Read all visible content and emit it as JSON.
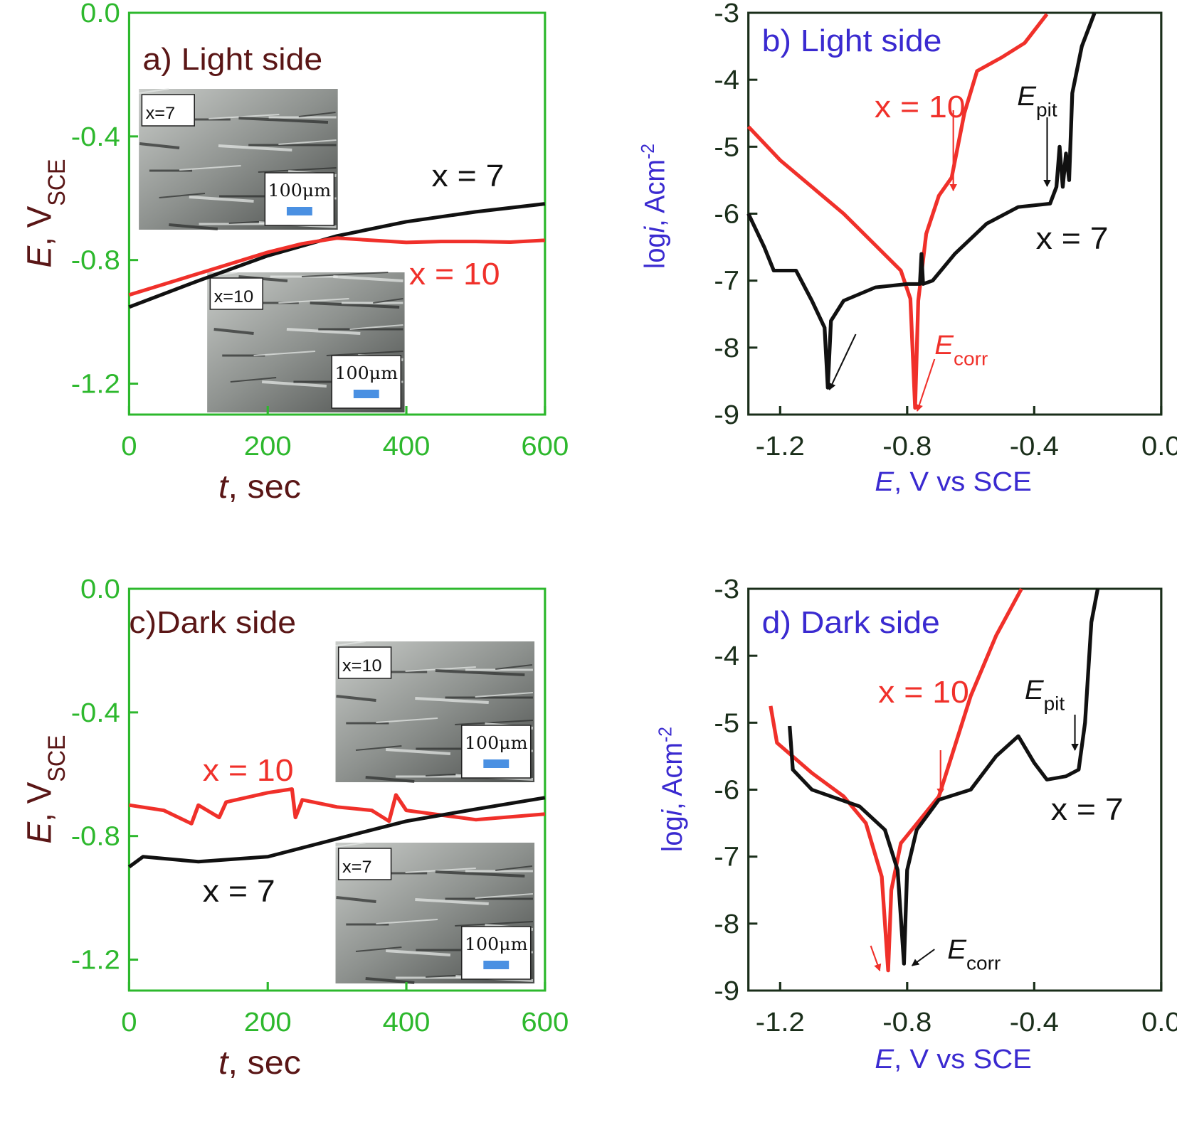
{
  "chart_data": [
    {
      "type": "line",
      "title": "a) Light side",
      "title_color": "#5a1616",
      "axis_color": "#2db82d",
      "label_color": "#5a1616",
      "x_label": [
        "t",
        ", sec"
      ],
      "y_label": [
        "E",
        ", V",
        "SCE"
      ],
      "xlim": [
        0,
        600
      ],
      "ylim": [
        -1.3,
        0
      ],
      "xticks": [
        0,
        200,
        400,
        600
      ],
      "yticks": [
        {
          "value": 0,
          "label": "0.0"
        },
        -0.4,
        -0.8,
        -1.2
      ],
      "series": [
        {
          "name": "x = 7",
          "color": "#111111",
          "x": [
            0,
            100,
            200,
            300,
            400,
            500,
            600
          ],
          "values": [
            -0.952,
            -0.867,
            -0.786,
            -0.722,
            -0.676,
            -0.644,
            -0.618
          ]
        },
        {
          "name": "x = 10",
          "color": "#f0302a",
          "x": [
            0,
            100,
            200,
            250,
            300,
            350,
            400,
            450,
            500,
            550,
            600
          ],
          "values": [
            -0.913,
            -0.844,
            -0.775,
            -0.747,
            -0.729,
            -0.736,
            -0.743,
            -0.74,
            -0.74,
            -0.742,
            -0.736
          ]
        }
      ],
      "insets": [
        {
          "label": "x=7",
          "scale": "100μm"
        },
        {
          "label": "x=10",
          "scale": "100μm"
        }
      ]
    },
    {
      "type": "line",
      "title": "b) Light side",
      "title_color": "#3a2ad0",
      "axis_color": "#1a2e1a",
      "label_color": "#3a2ad0",
      "x_label": [
        "E",
        ",  V vs SCE"
      ],
      "y_label": [
        "log",
        "i",
        ", Acm",
        "-2"
      ],
      "xlim": [
        -1.3,
        0
      ],
      "ylim": [
        -9,
        -3
      ],
      "xticks": [
        -1.2,
        -0.8,
        -0.4,
        {
          "value": 0,
          "label": "0.0"
        }
      ],
      "yticks": [
        -3,
        -4,
        -5,
        -6,
        -7,
        -8,
        -9
      ],
      "series": [
        {
          "name": "x = 10",
          "color": "#f0302a",
          "x": [
            -1.3,
            -1.2,
            -1.0,
            -0.9,
            -0.82,
            -0.79,
            -0.775,
            -0.765,
            -0.74,
            -0.7,
            -0.66,
            -0.62,
            -0.58,
            -0.5,
            -0.43,
            -0.36
          ],
          "values": [
            -4.7,
            -5.2,
            -6.0,
            -6.47,
            -6.85,
            -7.27,
            -8.9,
            -7.3,
            -6.3,
            -5.73,
            -5.46,
            -4.5,
            -3.87,
            -3.66,
            -3.45,
            -3.02
          ]
        },
        {
          "name": "x = 7",
          "color": "#111111",
          "x": [
            -1.3,
            -1.25,
            -1.22,
            -1.15,
            -1.1,
            -1.06,
            -1.05,
            -1.04,
            -1.0,
            -0.95,
            -0.9,
            -0.8,
            -0.76,
            -0.755,
            -0.75,
            -0.72,
            -0.65,
            -0.55,
            -0.45,
            -0.35,
            -0.33,
            -0.32,
            -0.31,
            -0.3,
            -0.29,
            -0.28,
            -0.25,
            -0.21
          ],
          "values": [
            -6.0,
            -6.5,
            -6.85,
            -6.85,
            -7.3,
            -7.7,
            -8.6,
            -7.6,
            -7.3,
            -7.2,
            -7.1,
            -7.05,
            -7.05,
            -6.6,
            -7.05,
            -7.0,
            -6.6,
            -6.15,
            -5.9,
            -5.85,
            -5.6,
            -5.0,
            -5.6,
            -5.1,
            -5.5,
            -4.2,
            -3.5,
            -3.0
          ]
        }
      ],
      "annotations": [
        [
          "E",
          "pit"
        ],
        [
          "E",
          "corr"
        ]
      ]
    },
    {
      "type": "line",
      "title": "c)Dark side",
      "title_color": "#5a1616",
      "axis_color": "#2db82d",
      "label_color": "#5a1616",
      "x_label": [
        "t",
        ", sec"
      ],
      "y_label": [
        "E",
        ", V",
        "SCE"
      ],
      "xlim": [
        0,
        600
      ],
      "ylim": [
        -1.3,
        0
      ],
      "xticks": [
        0,
        200,
        400,
        600
      ],
      "yticks": [
        {
          "value": 0,
          "label": "0.0"
        },
        -0.4,
        -0.8,
        -1.2
      ],
      "series": [
        {
          "name": "x = 10",
          "color": "#f0302a",
          "x": [
            0,
            50,
            90,
            100,
            130,
            140,
            200,
            235,
            240,
            250,
            300,
            350,
            375,
            385,
            400,
            500,
            600
          ],
          "values": [
            -0.7,
            -0.717,
            -0.76,
            -0.7,
            -0.74,
            -0.69,
            -0.66,
            -0.648,
            -0.74,
            -0.683,
            -0.706,
            -0.717,
            -0.752,
            -0.667,
            -0.717,
            -0.747,
            -0.729
          ]
        },
        {
          "name": "x = 7",
          "color": "#111111",
          "x": [
            0,
            20,
            100,
            200,
            300,
            400,
            500,
            600
          ],
          "values": [
            -0.9,
            -0.867,
            -0.883,
            -0.867,
            -0.809,
            -0.752,
            -0.713,
            -0.676
          ]
        }
      ],
      "insets": [
        {
          "label": "x=10",
          "scale": "100μm"
        },
        {
          "label": "x=7",
          "scale": "100μm"
        }
      ]
    },
    {
      "type": "line",
      "title": "d) Dark side",
      "title_color": "#3a2ad0",
      "axis_color": "#1a2e1a",
      "label_color": "#3a2ad0",
      "x_label": [
        "E",
        ", V vs SCE"
      ],
      "y_label": [
        "log",
        "i",
        ", Acm",
        "-2"
      ],
      "xlim": [
        -1.3,
        0
      ],
      "ylim": [
        -9,
        -3
      ],
      "xticks": [
        -1.2,
        -0.8,
        -0.4,
        {
          "value": 0,
          "label": "0.0"
        }
      ],
      "yticks": [
        -3,
        -4,
        -5,
        -6,
        -7,
        -8,
        -9
      ],
      "series": [
        {
          "name": "x = 10",
          "color": "#f0302a",
          "x": [
            -1.23,
            -1.21,
            -1.1,
            -1.0,
            -0.93,
            -0.88,
            -0.86,
            -0.85,
            -0.82,
            -0.76,
            -0.7,
            -0.66,
            -0.6,
            -0.52,
            -0.44
          ],
          "values": [
            -4.75,
            -5.3,
            -5.75,
            -6.1,
            -6.5,
            -7.3,
            -8.7,
            -7.5,
            -6.8,
            -6.45,
            -6.1,
            -5.5,
            -4.6,
            -3.7,
            -3.0
          ]
        },
        {
          "name": "x = 7",
          "color": "#111111",
          "x": [
            -1.17,
            -1.16,
            -1.1,
            -0.95,
            -0.87,
            -0.83,
            -0.81,
            -0.8,
            -0.77,
            -0.7,
            -0.6,
            -0.52,
            -0.45,
            -0.4,
            -0.36,
            -0.3,
            -0.26,
            -0.24,
            -0.22,
            -0.2
          ],
          "values": [
            -5.05,
            -5.7,
            -6.0,
            -6.25,
            -6.6,
            -7.2,
            -8.6,
            -7.2,
            -6.6,
            -6.15,
            -6.0,
            -5.5,
            -5.2,
            -5.6,
            -5.85,
            -5.8,
            -5.7,
            -5.0,
            -3.5,
            -3.0
          ]
        }
      ],
      "annotations": [
        [
          "E",
          "pit"
        ],
        [
          "E",
          "corr"
        ]
      ]
    }
  ]
}
